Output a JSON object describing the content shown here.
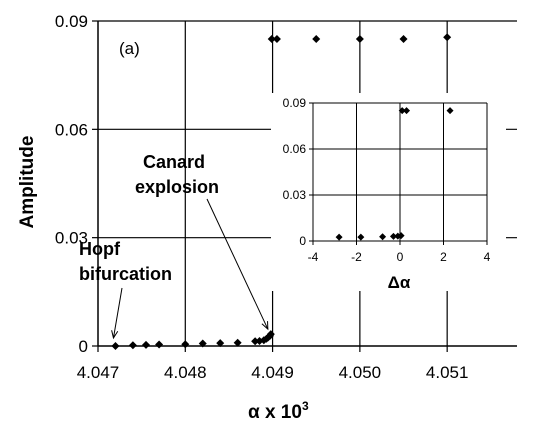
{
  "chart_data": [
    {
      "type": "scatter",
      "panel_label": "(a)",
      "xlabel": "α x 10",
      "xlabel_sup": "3",
      "ylabel": "Amplitude",
      "xlim": [
        4.047,
        4.0518
      ],
      "ylim": [
        0,
        0.09
      ],
      "xticks": [
        "4.047",
        "4.048",
        "4.049",
        "4.050",
        "4.051"
      ],
      "yticks": [
        "0",
        "0.03",
        "0.06",
        "0.09"
      ],
      "grid": true,
      "points": [
        {
          "x": 4.0472,
          "y": 0.0
        },
        {
          "x": 4.0474,
          "y": 0.0002
        },
        {
          "x": 4.04755,
          "y": 0.0003
        },
        {
          "x": 4.0477,
          "y": 0.0004
        },
        {
          "x": 4.048,
          "y": 0.0005
        },
        {
          "x": 4.0482,
          "y": 0.0007
        },
        {
          "x": 4.0484,
          "y": 0.0008
        },
        {
          "x": 4.0486,
          "y": 0.0009
        },
        {
          "x": 4.0488,
          "y": 0.0013
        },
        {
          "x": 4.04885,
          "y": 0.0014
        },
        {
          "x": 4.0489,
          "y": 0.0016
        },
        {
          "x": 4.04893,
          "y": 0.002
        },
        {
          "x": 4.04895,
          "y": 0.0024
        },
        {
          "x": 4.04897,
          "y": 0.0028
        },
        {
          "x": 4.04898,
          "y": 0.0033
        },
        {
          "x": 4.04899,
          "y": 0.085
        },
        {
          "x": 4.04905,
          "y": 0.085
        },
        {
          "x": 4.0495,
          "y": 0.085
        },
        {
          "x": 4.05,
          "y": 0.085
        },
        {
          "x": 4.0505,
          "y": 0.085
        },
        {
          "x": 4.051,
          "y": 0.0855
        }
      ],
      "annotations": [
        {
          "text_lines": [
            "Canard",
            "explosion"
          ],
          "arrow_to": {
            "x": 4.04898,
            "y": 0.0033
          }
        },
        {
          "text_lines": [
            "Hopf",
            "bifurcation"
          ],
          "arrow_to": {
            "x": 4.0472,
            "y": 0.0
          }
        }
      ]
    },
    {
      "type": "scatter",
      "role": "inset",
      "xlabel": "Δα",
      "xlim": [
        -4,
        4
      ],
      "ylim": [
        0,
        0.09
      ],
      "xticks": [
        "-4",
        "-2",
        "0",
        "2",
        "4"
      ],
      "yticks": [
        "0",
        "0.03",
        "0.06",
        "0.09"
      ],
      "grid": true,
      "points": [
        {
          "x": -2.8,
          "y": 0.0025
        },
        {
          "x": -1.8,
          "y": 0.0025
        },
        {
          "x": -0.8,
          "y": 0.0028
        },
        {
          "x": -0.3,
          "y": 0.003
        },
        {
          "x": -0.1,
          "y": 0.0032
        },
        {
          "x": 0.05,
          "y": 0.0035
        },
        {
          "x": 0.1,
          "y": 0.085
        },
        {
          "x": 0.3,
          "y": 0.085
        },
        {
          "x": 2.3,
          "y": 0.085
        }
      ]
    }
  ]
}
